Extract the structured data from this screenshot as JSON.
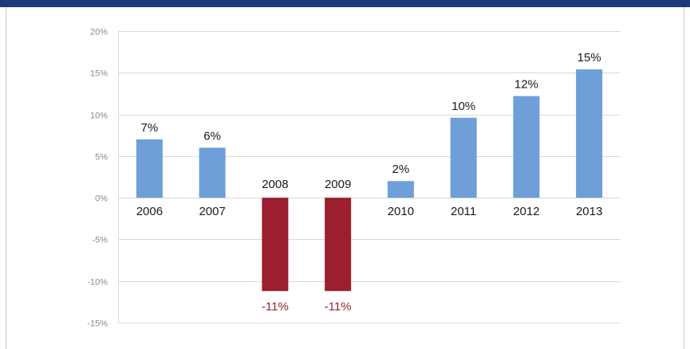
{
  "chart_data": {
    "type": "bar",
    "categories": [
      "2006",
      "2007",
      "2008",
      "2009",
      "2010",
      "2011",
      "2012",
      "2013"
    ],
    "values": [
      7,
      6,
      -11,
      -11,
      2,
      10,
      12,
      15
    ],
    "data_labels": [
      "7%",
      "6%",
      "-11%",
      "-11%",
      "2%",
      "10%",
      "12%",
      "15%"
    ],
    "bar_values_estimated": [
      7,
      6,
      -11.2,
      -11.2,
      2,
      9.6,
      12.2,
      15.4
    ],
    "y_ticks": [
      "20%",
      "15%",
      "10%",
      "5%",
      "0%",
      "-5%",
      "-10%",
      "-15%"
    ],
    "ylim": [
      -15,
      20
    ],
    "y_unit": "%",
    "grid": true,
    "legend": "none",
    "colors": {
      "positive": "#6f9fd8",
      "negative": "#9b1f2e",
      "negative_label": "#9b1f2e",
      "grid": "#d9d9d9",
      "top_bar": "#1c3a78"
    }
  }
}
